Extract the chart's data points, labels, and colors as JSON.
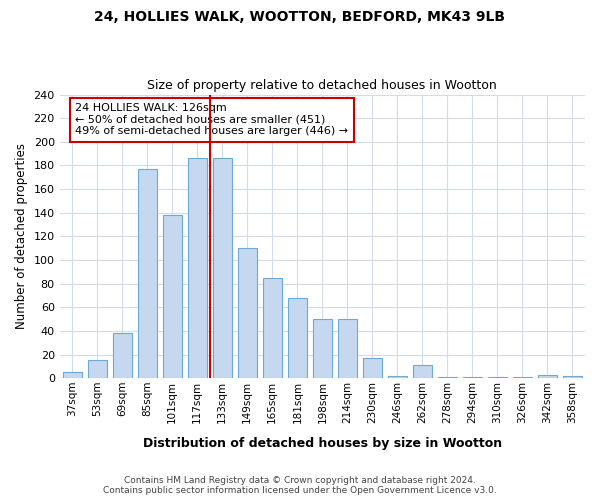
{
  "title1": "24, HOLLIES WALK, WOOTTON, BEDFORD, MK43 9LB",
  "title2": "Size of property relative to detached houses in Wootton",
  "xlabel": "Distribution of detached houses by size in Wootton",
  "ylabel": "Number of detached properties",
  "categories": [
    "37sqm",
    "53sqm",
    "69sqm",
    "85sqm",
    "101sqm",
    "117sqm",
    "133sqm",
    "149sqm",
    "165sqm",
    "181sqm",
    "198sqm",
    "214sqm",
    "230sqm",
    "246sqm",
    "262sqm",
    "278sqm",
    "294sqm",
    "310sqm",
    "326sqm",
    "342sqm",
    "358sqm"
  ],
  "values": [
    5,
    15,
    38,
    177,
    138,
    186,
    186,
    110,
    85,
    68,
    50,
    50,
    17,
    2,
    11,
    1,
    1,
    1,
    1,
    3,
    2
  ],
  "bar_color": "#c5d8f0",
  "bar_edge_color": "#6aaad4",
  "bar_width": 0.75,
  "marker_label": "24 HOLLIES WALK: 126sqm",
  "annotation_line1": "← 50% of detached houses are smaller (451)",
  "annotation_line2": "49% of semi-detached houses are larger (446) →",
  "marker_color": "#cc0000",
  "annotation_box_color": "#cc0000",
  "ylim": [
    0,
    240
  ],
  "yticks": [
    0,
    20,
    40,
    60,
    80,
    100,
    120,
    140,
    160,
    180,
    200,
    220,
    240
  ],
  "bg_color": "#ffffff",
  "plot_bg_color": "#ffffff",
  "grid_color": "#d0dce8",
  "footer_line1": "Contains HM Land Registry data © Crown copyright and database right 2024.",
  "footer_line2": "Contains public sector information licensed under the Open Government Licence v3.0."
}
